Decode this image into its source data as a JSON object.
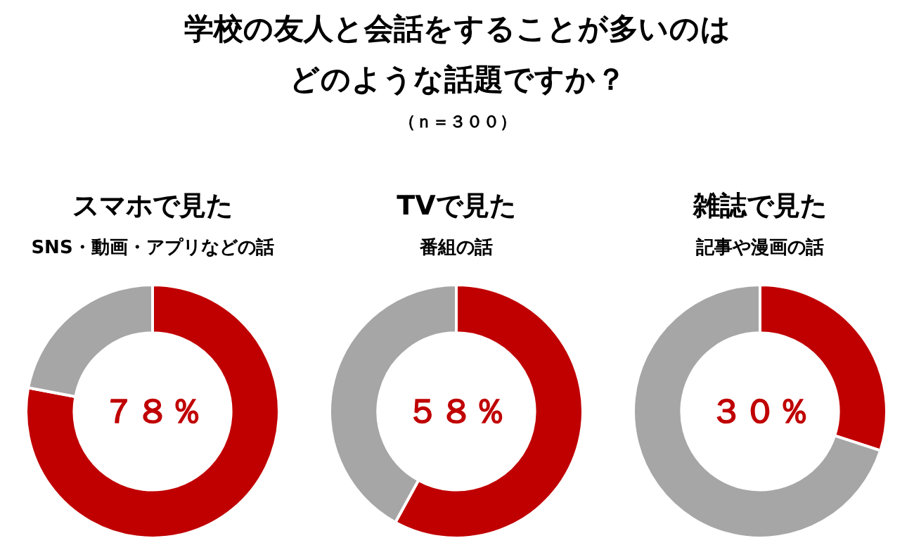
{
  "chart_data": [
    {
      "type": "other",
      "title": "学校の友人と会話をすることが多いのはどのような話題ですか？",
      "subtitle": "（ｎ＝３００）"
    },
    {
      "type": "donut",
      "title": "スマホで見た",
      "subtitle": "SNS・動画・アプリなどの話",
      "categories": [
        null,
        null
      ],
      "values": [
        78,
        22
      ],
      "colors": [
        "#c00000",
        "#a6a6a6"
      ],
      "annotations": [
        "７８％"
      ]
    },
    {
      "type": "donut",
      "title": "TVで見た",
      "subtitle": "番組の話",
      "categories": [
        null,
        null
      ],
      "values": [
        58,
        42
      ],
      "colors": [
        "#c00000",
        "#a6a6a6"
      ],
      "annotations": [
        "５８％"
      ]
    },
    {
      "type": "donut",
      "title": "雑誌で見た",
      "subtitle": "記事や漫画の話",
      "categories": [
        null,
        null
      ],
      "values": [
        30,
        70
      ],
      "colors": [
        "#c00000",
        "#a6a6a6"
      ],
      "annotations": [
        "３０％"
      ]
    }
  ]
}
